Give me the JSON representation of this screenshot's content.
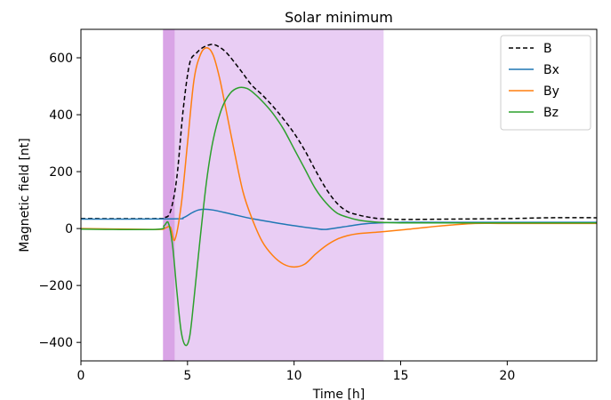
{
  "chart_data": {
    "type": "line",
    "title": "Solar minimum",
    "xlabel": "Time [h]",
    "ylabel": "Magnetic field [nt]",
    "xlim": [
      0,
      24.2
    ],
    "ylim": [
      -465,
      700
    ],
    "xticks": [
      0,
      5,
      10,
      15,
      20
    ],
    "yticks": [
      -400,
      -200,
      0,
      200,
      400,
      600
    ],
    "ytick_labels": [
      "−400",
      "−200",
      "0",
      "200",
      "400",
      "600"
    ],
    "legend_placement": "top-right",
    "grid": false,
    "shaded_regions": [
      {
        "x": [
          3.85,
          4.4
        ],
        "color": "#d9a4e6"
      },
      {
        "x": [
          4.4,
          14.2
        ],
        "color": "#e9cdf4"
      }
    ],
    "series": [
      {
        "name": "B",
        "color": "#000000",
        "dashed": true,
        "x": [
          0,
          3.5,
          3.9,
          4.2,
          4.5,
          4.8,
          5.1,
          5.4,
          5.7,
          6.0,
          6.3,
          6.8,
          7.5,
          8.0,
          8.5,
          9.0,
          9.5,
          10.0,
          10.5,
          11.0,
          11.5,
          12.0,
          12.5,
          13.0,
          13.5,
          14.0,
          15.0,
          17.0,
          20.0,
          22.0,
          24.2
        ],
        "y": [
          35,
          35,
          38,
          60,
          180,
          420,
          580,
          615,
          635,
          645,
          645,
          620,
          555,
          505,
          470,
          430,
          385,
          335,
          275,
          205,
          140,
          90,
          60,
          48,
          40,
          35,
          32,
          33,
          35,
          38,
          38
        ]
      },
      {
        "name": "Bx",
        "color": "#1f77b4",
        "dashed": false,
        "x": [
          0,
          4.3,
          4.8,
          5.2,
          5.5,
          5.8,
          6.2,
          7.0,
          8.0,
          9.0,
          10.0,
          11.0,
          11.5,
          12.5,
          13.5,
          15.0,
          18.0,
          24.2
        ],
        "y": [
          33,
          34,
          38,
          55,
          65,
          68,
          65,
          52,
          35,
          22,
          10,
          0,
          -3,
          8,
          18,
          22,
          22,
          22
        ]
      },
      {
        "name": "By",
        "color": "#ff7f0e",
        "dashed": false,
        "x": [
          0,
          3.5,
          3.9,
          4.2,
          4.4,
          4.7,
          5.0,
          5.3,
          5.6,
          5.9,
          6.2,
          6.5,
          6.8,
          7.2,
          7.6,
          8.0,
          8.5,
          9.0,
          9.5,
          10.0,
          10.5,
          11.0,
          11.5,
          12.0,
          12.5,
          13.0,
          14.0,
          15.0,
          17.0,
          18.5,
          20.0,
          24.2
        ],
        "y": [
          0,
          -3,
          0,
          5,
          -40,
          80,
          300,
          520,
          610,
          635,
          610,
          530,
          420,
          270,
          130,
          40,
          -45,
          -95,
          -125,
          -135,
          -125,
          -90,
          -60,
          -38,
          -25,
          -18,
          -12,
          -5,
          10,
          18,
          18,
          18
        ]
      },
      {
        "name": "Bz",
        "color": "#2ca02c",
        "dashed": false,
        "x": [
          0,
          3.5,
          3.9,
          4.1,
          4.3,
          4.5,
          4.7,
          4.9,
          5.1,
          5.3,
          5.6,
          5.9,
          6.2,
          6.6,
          7.0,
          7.4,
          7.8,
          8.2,
          8.6,
          9.0,
          9.5,
          10.0,
          10.5,
          11.0,
          11.5,
          12.0,
          12.5,
          13.0,
          13.5,
          14.0,
          15.0,
          17.0,
          20.0,
          24.2
        ],
        "y": [
          -2,
          -3,
          10,
          20,
          -60,
          -220,
          -360,
          -410,
          -380,
          -250,
          -30,
          170,
          310,
          420,
          475,
          495,
          492,
          470,
          440,
          405,
          350,
          280,
          210,
          140,
          90,
          55,
          40,
          30,
          25,
          22,
          20,
          20,
          20,
          20
        ]
      }
    ]
  }
}
